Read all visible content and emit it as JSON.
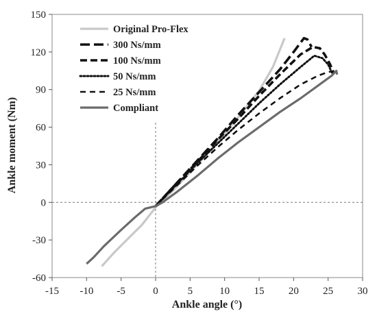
{
  "chart_data": {
    "type": "line",
    "title": "",
    "xlabel": "Ankle angle (°)",
    "ylabel": "Ankle moment (Nm)",
    "xlim": [
      -15,
      30
    ],
    "ylim": [
      -60,
      150
    ],
    "xticks": [
      -15,
      -10,
      -5,
      0,
      5,
      10,
      15,
      20,
      25,
      30
    ],
    "yticks": [
      -60,
      -30,
      0,
      30,
      60,
      90,
      120,
      150
    ],
    "grid": false,
    "reference_lines": [
      {
        "axis": "x",
        "value": 0
      },
      {
        "axis": "y",
        "value": 0
      }
    ],
    "legend_position": "top-left",
    "series": [
      {
        "name": "Original Pro-Flex",
        "color": "#c8c8c8",
        "dash": "solid",
        "points": [
          [
            -7.8,
            -51
          ],
          [
            -6,
            -40
          ],
          [
            -4,
            -29
          ],
          [
            -2,
            -18
          ],
          [
            0,
            -4
          ],
          [
            3,
            12
          ],
          [
            6,
            30
          ],
          [
            9,
            48
          ],
          [
            12,
            68
          ],
          [
            15,
            89
          ],
          [
            17,
            108
          ],
          [
            18.7,
            131
          ]
        ]
      },
      {
        "name": "300 Ns/mm",
        "color": "#111111",
        "dash": "long",
        "points": [
          [
            0,
            -3
          ],
          [
            3,
            15
          ],
          [
            6,
            33
          ],
          [
            9,
            51
          ],
          [
            12,
            70
          ],
          [
            15,
            88
          ],
          [
            18,
            106
          ],
          [
            20,
            120
          ],
          [
            21.5,
            131
          ],
          [
            22,
            130
          ],
          [
            22.6,
            124
          ]
        ]
      },
      {
        "name": "100 Ns/mm",
        "color": "#111111",
        "dash": "medium",
        "points": [
          [
            0,
            -3
          ],
          [
            3,
            15
          ],
          [
            6,
            32
          ],
          [
            9,
            50
          ],
          [
            12,
            67
          ],
          [
            15,
            85
          ],
          [
            18,
            102
          ],
          [
            21,
            118
          ],
          [
            22.8,
            124
          ],
          [
            23.8,
            123
          ],
          [
            24.5,
            118
          ],
          [
            25.3,
            110
          ],
          [
            25.8,
            103
          ]
        ]
      },
      {
        "name": "50 Ns/mm",
        "color": "#111111",
        "dash": "dotted",
        "points": [
          [
            0,
            -3
          ],
          [
            3,
            14
          ],
          [
            6,
            31
          ],
          [
            9,
            47
          ],
          [
            12,
            63
          ],
          [
            15,
            79
          ],
          [
            18,
            94
          ],
          [
            21,
            108
          ],
          [
            23,
            117
          ],
          [
            24.2,
            115
          ],
          [
            25,
            110
          ],
          [
            25.6,
            103
          ]
        ]
      },
      {
        "name": "25 Ns/mm",
        "color": "#111111",
        "dash": "short",
        "points": [
          [
            0,
            -3
          ],
          [
            3,
            13
          ],
          [
            6,
            29
          ],
          [
            9,
            44
          ],
          [
            12,
            58
          ],
          [
            15,
            71
          ],
          [
            18,
            83
          ],
          [
            21,
            94
          ],
          [
            23.5,
            101
          ],
          [
            25,
            104
          ],
          [
            26,
            105
          ]
        ]
      },
      {
        "name": "Compliant",
        "color": "#6b6b6b",
        "dash": "solid",
        "points": [
          [
            -10,
            -49
          ],
          [
            -9,
            -44
          ],
          [
            -7.5,
            -35
          ],
          [
            -5,
            -22
          ],
          [
            -3,
            -12
          ],
          [
            -1.5,
            -5
          ],
          [
            0,
            -3
          ],
          [
            1,
            0
          ],
          [
            3,
            8
          ],
          [
            6,
            21
          ],
          [
            9,
            35
          ],
          [
            12,
            48
          ],
          [
            15,
            60
          ],
          [
            18,
            72
          ],
          [
            21,
            83
          ],
          [
            24,
            95
          ],
          [
            25.5,
            101
          ],
          [
            26.2,
            105
          ],
          [
            26.3,
            102
          ]
        ]
      }
    ]
  }
}
